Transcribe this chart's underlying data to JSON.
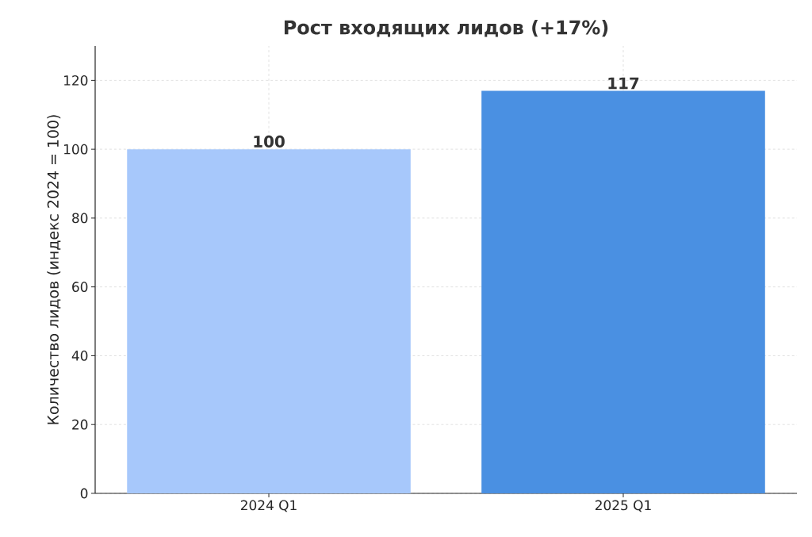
{
  "chart_data": {
    "type": "bar",
    "title": "Рост входящих лидов (+17%)",
    "ylabel": "Количество лидов (индекс 2024 = 100)",
    "categories": [
      "2024 Q1",
      "2025 Q1"
    ],
    "values": [
      100,
      117
    ],
    "colors": [
      "#a7c8fb",
      "#4a90e2"
    ],
    "ylim": [
      0,
      130
    ],
    "yticks": [
      0,
      20,
      40,
      60,
      80,
      100,
      120
    ],
    "grid": true,
    "data_labels": true
  }
}
